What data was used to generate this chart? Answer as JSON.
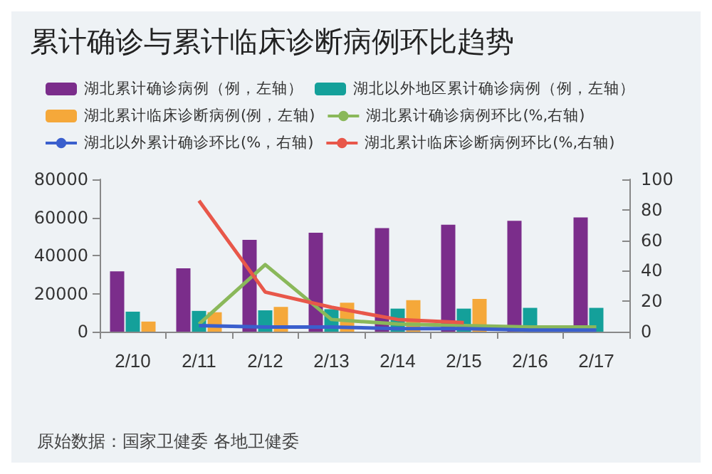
{
  "chart_data": {
    "type": "bar",
    "title": "累计确诊与累计临床诊断病例环比趋势",
    "categories": [
      "2/10",
      "2/11",
      "2/12",
      "2/13",
      "2/14",
      "2/15",
      "2/16",
      "2/17"
    ],
    "series": [
      {
        "name": "湖北累计确诊病例（例，左轴）",
        "color": "#7b2d8b",
        "values": [
          31700,
          33300,
          48200,
          52000,
          54400,
          56200,
          58200,
          60000
        ]
      },
      {
        "name": "湖北以外地区累计确诊病例（例，左轴）",
        "color": "#14a09a",
        "values": [
          10500,
          10900,
          11200,
          11800,
          12100,
          12100,
          12500,
          12500
        ]
      },
      {
        "name": "湖北累计临床诊断病例(例，左轴)",
        "color": "#f5a83a",
        "values": [
          5300,
          10200,
          13000,
          15200,
          16500,
          17200,
          null,
          null
        ]
      },
      {
        "name": "湖北累计确诊病例环比(%,右轴)",
        "type": "line",
        "axis": "y2",
        "color": "#8ab85a",
        "values": [
          null,
          5,
          44,
          8,
          5,
          4,
          3,
          3
        ]
      },
      {
        "name": "湖北以外累计确诊环比(%，右轴)",
        "type": "line",
        "axis": "y2",
        "color": "#3a5fcd",
        "values": [
          null,
          4,
          3,
          3,
          2,
          2,
          1,
          1
        ]
      },
      {
        "name": "湖北累计临床诊断病例环比(%,右轴)",
        "type": "line",
        "axis": "y2",
        "color": "#e8574a",
        "values": [
          null,
          86,
          26,
          16,
          8,
          6,
          null,
          null
        ]
      }
    ],
    "ylim": [
      0,
      80000
    ],
    "yticks": [
      0,
      20000,
      40000,
      60000,
      80000
    ],
    "y2lim": [
      0,
      100
    ],
    "y2ticks": [
      0,
      20,
      40,
      60,
      80,
      100
    ],
    "grid": false,
    "legend": "top",
    "marker": "none",
    "annotations": [
      "原始数据：国家卫健委 各地卫健委"
    ]
  }
}
